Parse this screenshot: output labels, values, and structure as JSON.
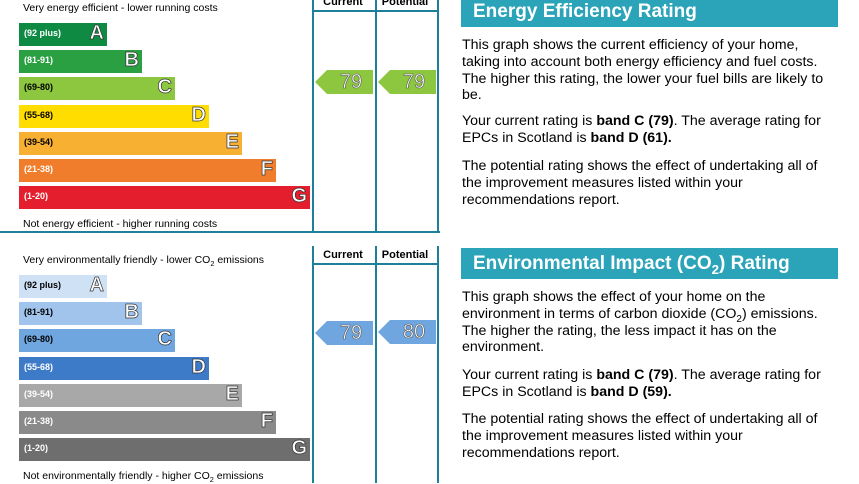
{
  "energy": {
    "top_label": "Very energy efficient - lower running costs",
    "bottom_label": "Not energy efficient - higher running costs",
    "header_current": "Current",
    "header_potential": "Potential",
    "title": "Energy Efficiency Rating",
    "para1": "This graph shows the current efficiency of your home, taking into account both energy efficiency and fuel costs. The higher this rating, the lower your fuel bills are likely to be.",
    "para2_a": "Your current rating is ",
    "para2_b": "band C (79)",
    "para2_c": ". The average rating for EPCs in Scotland is ",
    "para2_d": "band D (61).",
    "para3": "The potential rating shows the effect of undertaking all of the improvement measures listed within your recommendations report.",
    "arrow_color": "#8dc63f"
  },
  "environment": {
    "top_label_a": "Very environmentally friendly - lower CO",
    "top_label_sub": "2",
    "top_label_b": " emissions",
    "bottom_label_a": "Not environmentally friendly - higher CO",
    "bottom_label_sub": "2",
    "bottom_label_b": " emissions",
    "header_current": "Current",
    "header_potential": "Potential",
    "title_a": "Environmental Impact (CO",
    "title_sub": "2",
    "title_b": ") Rating",
    "para1_a": "This graph shows the effect of your home on the environment in terms of carbon dioxide (CO",
    "para1_sub": "2",
    "para1_b": ") emissions. The higher the rating, the less impact it has on the environment.",
    "para2_a": "Your current rating is ",
    "para2_b": "band C (79)",
    "para2_c": ". The average rating for EPCs in Scotland is ",
    "para2_d": "band D (59).",
    "para3": "The potential rating shows the effect of undertaking all of the improvement measures listed within your recommendations report.",
    "arrow_color": "#6fa6e0"
  },
  "chart_data": [
    {
      "type": "bar",
      "title": "Energy Efficiency Rating",
      "categories": [
        "A",
        "B",
        "C",
        "D",
        "E",
        "F",
        "G"
      ],
      "ranges": [
        "(92 plus)",
        "(81-91)",
        "(69-80)",
        "(55-68)",
        "(39-54)",
        "(21-38)",
        "(1-20)"
      ],
      "colors": [
        "#0e8a43",
        "#2aa043",
        "#8dc63f",
        "#ffdd00",
        "#f8b032",
        "#ef7d2c",
        "#e41e2c"
      ],
      "current": 79,
      "potential": 79
    },
    {
      "type": "bar",
      "title": "Environmental Impact (CO2) Rating",
      "categories": [
        "A",
        "B",
        "C",
        "D",
        "E",
        "F",
        "G"
      ],
      "ranges": [
        "(92 plus)",
        "(81-91)",
        "(69-80)",
        "(55-68)",
        "(39-54)",
        "(21-38)",
        "(1-20)"
      ],
      "colors": [
        "#cfe2f5",
        "#a0c4ec",
        "#6fa6e0",
        "#3d7ac7",
        "#a8a8a8",
        "#8a8a8a",
        "#6e6e6e"
      ],
      "current": 79,
      "potential": 80
    }
  ]
}
